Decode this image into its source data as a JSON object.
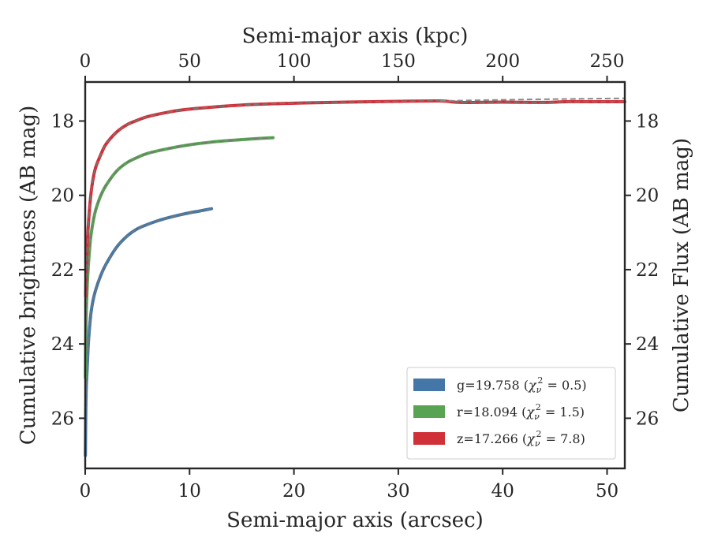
{
  "chart_data": {
    "type": "line",
    "xlabel": "Semi-major axis (arcsec)",
    "xlabel_top": "Semi-major axis (kpc)",
    "ylabel": "Cumulative brightness (AB mag)",
    "ylabel_right": "Cumulative Flux (AB mag)",
    "xlim": [
      0,
      51.7
    ],
    "ylim": [
      27.35,
      16.95
    ],
    "y_inverted": true,
    "xlim_top": [
      0,
      258.5
    ],
    "x_ticks": [
      0,
      10,
      20,
      30,
      40,
      50
    ],
    "x_tick_labels": [
      "0",
      "10",
      "20",
      "30",
      "40",
      "50"
    ],
    "x_top_ticks": [
      0,
      50,
      100,
      150,
      200,
      250
    ],
    "x_top_tick_labels": [
      "0",
      "50",
      "100",
      "150",
      "200",
      "250"
    ],
    "y_ticks": [
      18,
      20,
      22,
      24,
      26
    ],
    "y_tick_labels": [
      "18",
      "20",
      "22",
      "24",
      "26"
    ],
    "y_right_ticks": [
      18,
      20,
      22,
      24,
      26
    ],
    "y_right_tick_labels": [
      "18",
      "20",
      "22",
      "24",
      "26"
    ],
    "grid": false,
    "legend_position": "lower-right",
    "legend": [
      {
        "prefix": "g=19.758 (",
        "math": "χ",
        "sub": "ν",
        "sup": "2",
        "suffix": " = 0.5)",
        "color": "#4477a8"
      },
      {
        "prefix": "r=18.094 (",
        "math": "χ",
        "sub": "ν",
        "sup": "2",
        "suffix": " = 1.5)",
        "color": "#59a453"
      },
      {
        "prefix": "z=17.266 (",
        "math": "χ",
        "sub": "ν",
        "sup": "2",
        "suffix": " = 7.8)",
        "color": "#d03038"
      }
    ],
    "series": [
      {
        "band": "g",
        "color": "#4477a8",
        "fit_color": "#777777",
        "x": [
          0.02,
          0.05,
          0.1,
          0.2,
          0.3,
          0.5,
          0.7,
          1.0,
          1.5,
          2.0,
          3.0,
          4.0,
          5.0,
          6.0,
          7.0,
          8.0,
          9.0,
          10.0,
          11.0,
          12.1
        ],
        "y": [
          27.0,
          26.0,
          25.2,
          24.6,
          24.0,
          23.3,
          22.9,
          22.55,
          22.15,
          21.85,
          21.4,
          21.1,
          20.9,
          20.78,
          20.68,
          20.6,
          20.53,
          20.47,
          20.42,
          20.36
        ]
      },
      {
        "band": "r",
        "color": "#59a453",
        "fit_color": "#777777",
        "x": [
          0.02,
          0.05,
          0.1,
          0.2,
          0.3,
          0.5,
          0.7,
          1.0,
          1.5,
          2.0,
          3.0,
          4.0,
          5.0,
          6.0,
          8.0,
          10.0,
          12.0,
          14.0,
          16.0,
          18.0
        ],
        "y": [
          24.9,
          24.0,
          23.2,
          22.4,
          21.9,
          21.2,
          20.8,
          20.4,
          20.0,
          19.73,
          19.35,
          19.12,
          18.98,
          18.87,
          18.74,
          18.64,
          18.57,
          18.52,
          18.48,
          18.45
        ]
      },
      {
        "band": "z",
        "color": "#d03038",
        "fit_color": "#777777",
        "x": [
          0.05,
          0.1,
          0.2,
          0.3,
          0.5,
          0.7,
          1.0,
          1.5,
          2.0,
          3.0,
          4.0,
          5.0,
          6.0,
          8.0,
          10.0,
          15.0,
          20.0,
          25.0,
          30.0,
          34.0,
          36.0,
          40.0,
          44.0,
          46.0,
          48.0,
          51.7
        ],
        "y": [
          22.7,
          22.0,
          21.3,
          20.8,
          20.1,
          19.65,
          19.25,
          18.9,
          18.62,
          18.3,
          18.1,
          17.98,
          17.88,
          17.76,
          17.68,
          17.57,
          17.52,
          17.49,
          17.47,
          17.46,
          17.5,
          17.49,
          17.5,
          17.48,
          17.48,
          17.48
        ]
      }
    ],
    "fit_extension": {
      "color": "#888888",
      "x": [
        34.0,
        40.0,
        45.0,
        51.7
      ],
      "y": [
        17.46,
        17.43,
        17.41,
        17.39
      ]
    }
  }
}
